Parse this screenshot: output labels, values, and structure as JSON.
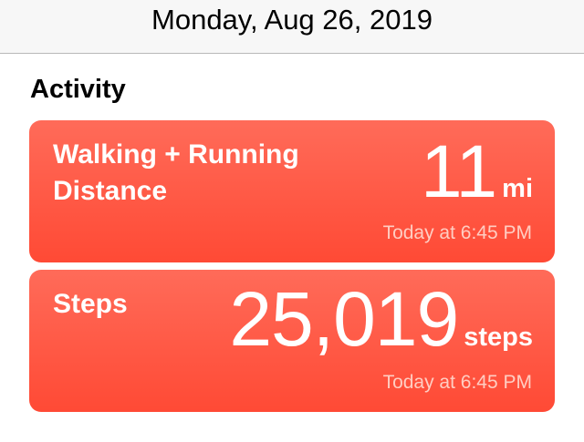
{
  "header": {
    "date": "Monday, Aug 26, 2019"
  },
  "section": {
    "title": "Activity"
  },
  "cards": [
    {
      "title_line1": "Walking + Running",
      "title_line2": "Distance",
      "value": "11",
      "unit": "mi",
      "timestamp": "Today at 6:45 PM"
    },
    {
      "title_line1": "Steps",
      "value": "25,019",
      "unit": "steps",
      "timestamp": "Today at 6:45 PM"
    }
  ],
  "colors": {
    "card_top": "#ff6b59",
    "card_bottom": "#ff4a35"
  }
}
